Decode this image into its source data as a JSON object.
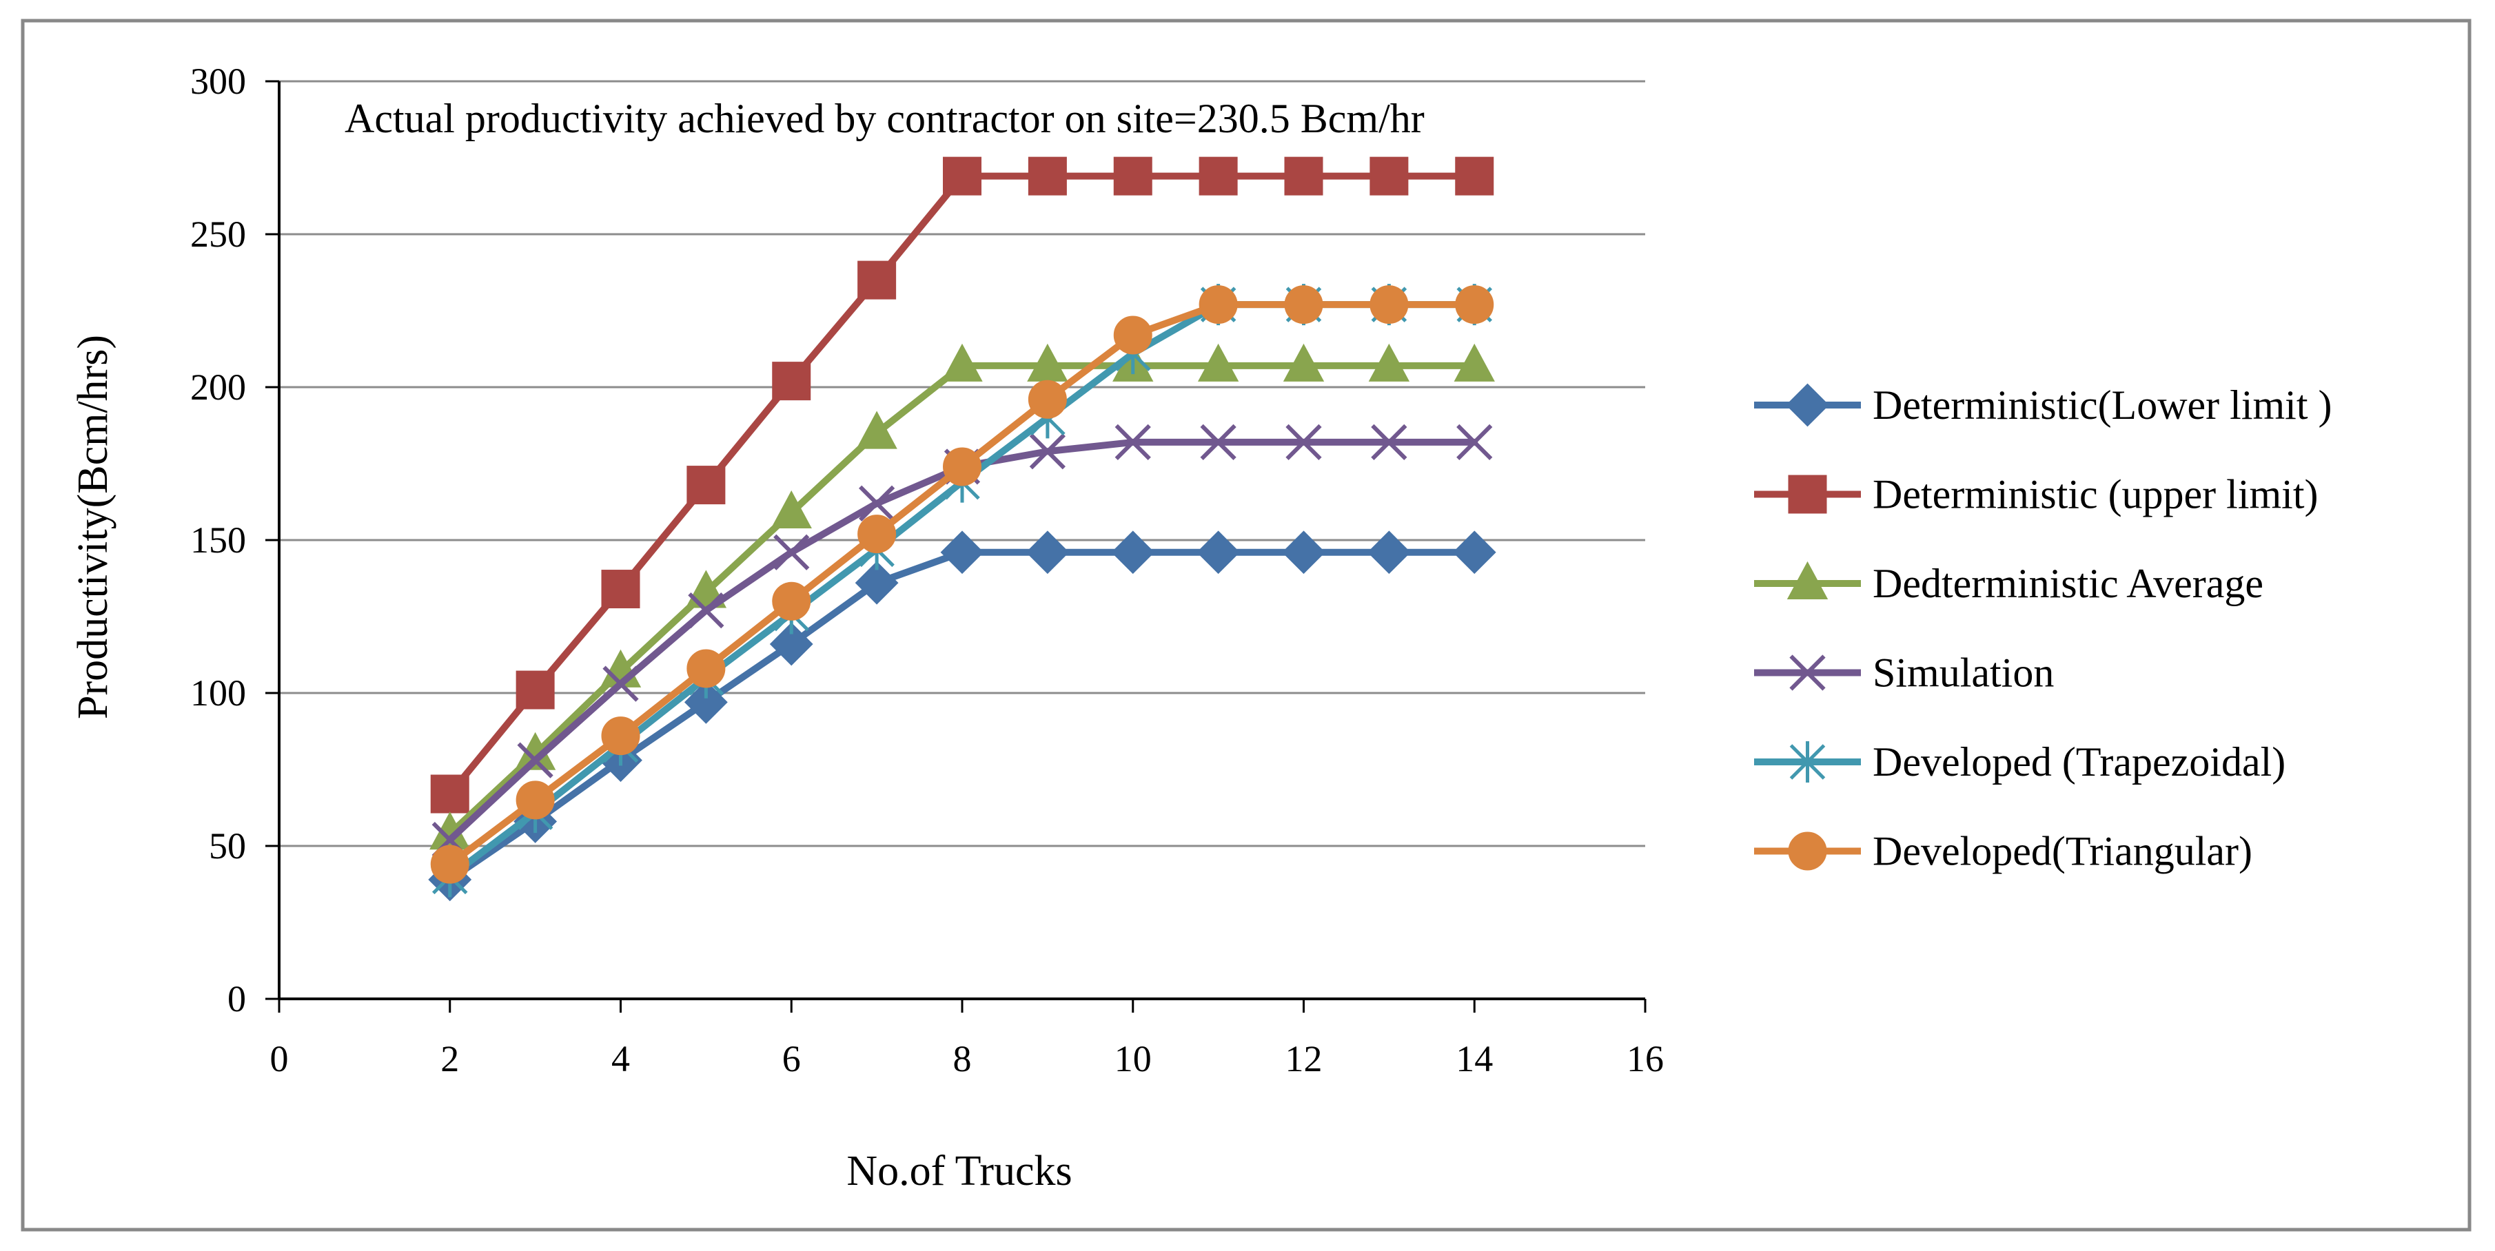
{
  "chart_data": {
    "type": "line",
    "title": "",
    "xlabel": "No.of Trucks",
    "ylabel": "Productivity(Bcm/hrs)",
    "xlim": [
      0,
      16
    ],
    "ylim": [
      0,
      300
    ],
    "xticks": [
      0,
      2,
      4,
      6,
      8,
      10,
      12,
      14,
      16
    ],
    "yticks": [
      0,
      50,
      100,
      150,
      200,
      250,
      300
    ],
    "xtick_labels": [
      "0",
      "2",
      "4",
      "6",
      "8",
      "10",
      "12",
      "14",
      "16"
    ],
    "ytick_labels": [
      "0",
      "50",
      "100",
      "150",
      "200",
      "250",
      "300"
    ],
    "grid": "horizontal",
    "legend_position": "right",
    "annotation": "Actual productivity achieved by contractor on site=230.5 Bcm/hr",
    "x": [
      2,
      3,
      4,
      5,
      6,
      7,
      8,
      9,
      10,
      11,
      12,
      13,
      14
    ],
    "series": [
      {
        "name": "Deterministic(Lower limit )",
        "color": "#4572A7",
        "marker": "diamond",
        "values": [
          39,
          58,
          78,
          97,
          116,
          136,
          146,
          146,
          146,
          146,
          146,
          146,
          146
        ]
      },
      {
        "name": "Deterministic (upper limit)",
        "color": "#AA4643",
        "marker": "square",
        "values": [
          67,
          101,
          134,
          168,
          202,
          235,
          269,
          269,
          269,
          269,
          269,
          269,
          269
        ]
      },
      {
        "name": "Dedterministic Average",
        "color": "#89A54E",
        "marker": "triangle",
        "values": [
          54,
          80,
          107,
          133,
          159,
          185,
          207,
          207,
          207,
          207,
          207,
          207,
          207
        ]
      },
      {
        "name": "Simulation",
        "color": "#71588F",
        "marker": "x",
        "values": [
          52,
          78,
          103,
          127,
          146,
          162,
          174,
          179,
          182,
          182,
          182,
          182,
          182
        ]
      },
      {
        "name": "Developed (Trapezoidal)",
        "color": "#4198AF",
        "marker": "star",
        "values": [
          40,
          61,
          83,
          105,
          126,
          147,
          169,
          190,
          211,
          227,
          227,
          227,
          227
        ]
      },
      {
        "name": "Developed(Triangular)",
        "color": "#DB843D",
        "marker": "circle",
        "values": [
          44,
          65,
          86,
          108,
          130,
          152,
          174,
          196,
          217,
          227,
          227,
          227,
          227
        ]
      }
    ]
  }
}
